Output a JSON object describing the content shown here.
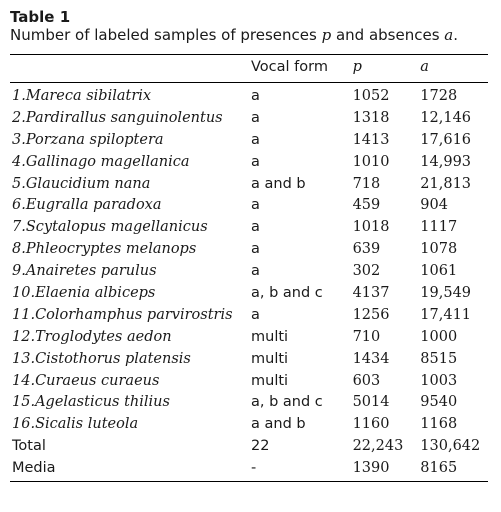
{
  "caption": {
    "label": "Table 1",
    "text_before_p": "Number of labeled samples of presences ",
    "p_symbol": "p",
    "text_between": " and absences ",
    "a_symbol": "a",
    "text_end": "."
  },
  "header": {
    "col_species": "",
    "col_vocal": "Vocal form",
    "col_p": "p",
    "col_a": "a"
  },
  "rows": [
    {
      "index": "1.",
      "species": "Mareca sibilatrix",
      "vocal": "a",
      "p": "1052",
      "a": "1728"
    },
    {
      "index": "2.",
      "species": "Pardirallus sanguinolentus",
      "vocal": "a",
      "p": "1318",
      "a": "12,146"
    },
    {
      "index": "3.",
      "species": "Porzana spiloptera",
      "vocal": "a",
      "p": "1413",
      "a": "17,616"
    },
    {
      "index": "4.",
      "species": "Gallinago magellanica",
      "vocal": "a",
      "p": "1010",
      "a": "14,993"
    },
    {
      "index": "5.",
      "species": "Glaucidium nana",
      "vocal": "a and b",
      "p": "718",
      "a": "21,813"
    },
    {
      "index": "6.",
      "species": "Eugralla paradoxa",
      "vocal": "a",
      "p": "459",
      "a": "904"
    },
    {
      "index": "7.",
      "species": "Scytalopus magellanicus",
      "vocal": "a",
      "p": "1018",
      "a": "1117"
    },
    {
      "index": "8.",
      "species": "Phleocryptes melanops",
      "vocal": "a",
      "p": "639",
      "a": "1078"
    },
    {
      "index": "9.",
      "species": "Anairetes parulus",
      "vocal": "a",
      "p": "302",
      "a": "1061"
    },
    {
      "index": "10.",
      "species": "Elaenia albiceps",
      "vocal": "a, b and c",
      "p": "4137",
      "a": "19,549"
    },
    {
      "index": "11.",
      "species": "Colorhamphus parvirostris",
      "vocal": "a",
      "p": "1256",
      "a": "17,411"
    },
    {
      "index": "12.",
      "species": "Troglodytes aedon",
      "vocal": "multi",
      "p": "710",
      "a": "1000"
    },
    {
      "index": "13.",
      "species": "Cistothorus platensis",
      "vocal": "multi",
      "p": "1434",
      "a": "8515"
    },
    {
      "index": "14.",
      "species": "Curaeus curaeus",
      "vocal": "multi",
      "p": "603",
      "a": "1003"
    },
    {
      "index": "15.",
      "species": "Agelasticus thilius",
      "vocal": "a, b and c",
      "p": "5014",
      "a": "9540"
    },
    {
      "index": "16.",
      "species": "Sicalis luteola",
      "vocal": "a and b",
      "p": "1160",
      "a": "1168"
    }
  ],
  "summary": [
    {
      "label": "Total",
      "vocal": "22",
      "p": "22,243",
      "a": "130,642"
    },
    {
      "label": "Media",
      "vocal": "-",
      "p": "1390",
      "a": "8165"
    }
  ]
}
